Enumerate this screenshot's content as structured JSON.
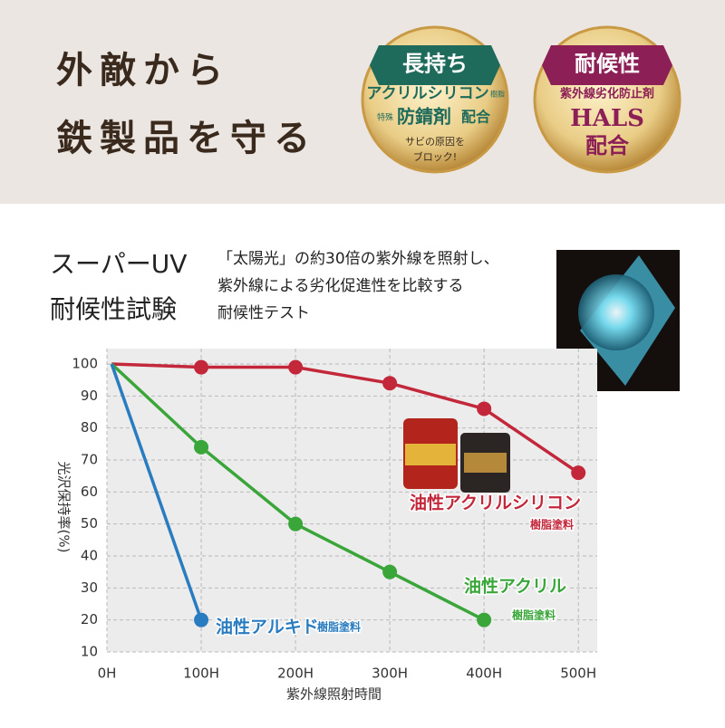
{
  "header": {
    "title_lines": [
      "外敵から",
      "鉄製品を守る"
    ],
    "badges": [
      {
        "ribbon": "長持ち",
        "lines": [
          "アクリルシリコン",
          "樹脂",
          "特殊",
          "防錆剤",
          "配合",
          "サビの原因を",
          "ブロック!"
        ]
      },
      {
        "ribbon": "耐候性",
        "lines": [
          "紫外線劣化防止剤",
          "HALS",
          "配合"
        ]
      }
    ]
  },
  "test": {
    "title_lines": [
      "スーパーUV",
      "耐候性試験"
    ],
    "description_lines": [
      "「太陽光」の約30倍の紫外線を照射し、",
      "紫外線による劣化促進性を比較する",
      "耐候性テスト"
    ]
  },
  "chart_data": {
    "type": "line",
    "x_label": "紫外線照射時間",
    "y_label": "光沢保持率(%)",
    "x": [
      5,
      100,
      200,
      300,
      400,
      500
    ],
    "series": [
      {
        "name": "油性アクリルシリコン",
        "note": "樹脂塗料",
        "color": "#c3273a",
        "values": [
          100,
          99,
          99,
          94,
          86,
          66
        ]
      },
      {
        "name": "油性アクリル",
        "note": "樹脂塗料",
        "color": "#3aa63a",
        "values": [
          100,
          74,
          50,
          35,
          20,
          null
        ]
      },
      {
        "name": "油性アルキド",
        "note": "樹脂塗料",
        "color": "#2a7cc0",
        "values": [
          100,
          20,
          null,
          null,
          null,
          null
        ]
      }
    ],
    "xlim": [
      0,
      520
    ],
    "xticks": [
      {
        "value": 0,
        "label": "0H"
      },
      {
        "value": 100,
        "label": "100H"
      },
      {
        "value": 200,
        "label": "200H"
      },
      {
        "value": 300,
        "label": "300H"
      },
      {
        "value": 400,
        "label": "400H"
      },
      {
        "value": 500,
        "label": "500H"
      }
    ],
    "ylim": [
      10,
      100
    ],
    "yticks": [
      10,
      20,
      30,
      40,
      50,
      60,
      70,
      80,
      90,
      100
    ],
    "grid": true
  }
}
